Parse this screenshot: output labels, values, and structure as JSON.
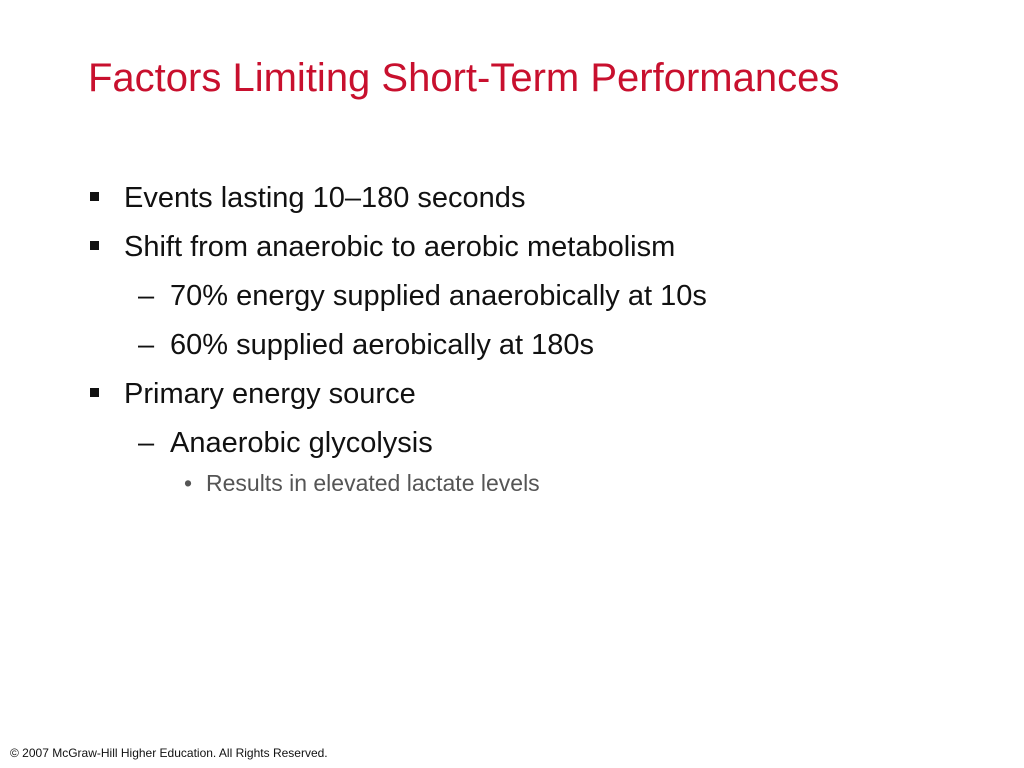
{
  "slide": {
    "title": "Factors Limiting Short-Term Performances",
    "bullets": {
      "b1": "Events lasting 10–180 seconds",
      "b2": "Shift from anaerobic to aerobic metabolism",
      "b2_sub1": "70% energy supplied anaerobically at 10s",
      "b2_sub2": "60% supplied aerobically at 180s",
      "b3": "Primary energy source",
      "b3_sub1": "Anaerobic glycolysis",
      "b3_sub1_sub1": "Results in elevated lactate levels"
    },
    "markers": {
      "dash": "–",
      "dot": "•"
    },
    "footer": "© 2007 McGraw-Hill Higher Education. All Rights Reserved.",
    "colors": {
      "title": "#c8102e",
      "text": "#111111",
      "subtext": "#555555"
    }
  }
}
